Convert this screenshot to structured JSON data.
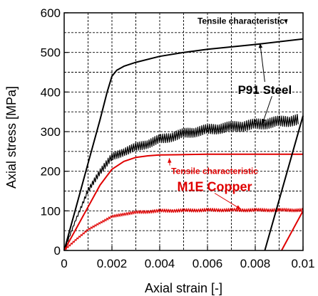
{
  "chart_data": {
    "type": "line",
    "title": "",
    "xlabel": "Axial strain [-]",
    "ylabel": "Axial stress [MPa]",
    "xlim": [
      0,
      0.01
    ],
    "ylim": [
      0,
      600
    ],
    "xticks": [
      0,
      0.002,
      0.004,
      0.006,
      0.008,
      0.01
    ],
    "xtick_labels": [
      "0",
      "0.002",
      "0.004",
      "0.006",
      "0.008",
      "0.01"
    ],
    "yticks": [
      0,
      100,
      200,
      300,
      400,
      500,
      600
    ],
    "ytick_labels": [
      "0",
      "100",
      "200",
      "300",
      "400",
      "500",
      "600"
    ],
    "grid": true,
    "colors": {
      "steel": "#000000",
      "copper": "#e00000"
    },
    "series": [
      {
        "key": "steel_tensile",
        "color": "#000000",
        "x": [
          0,
          0.0005,
          0.001,
          0.0015,
          0.0018,
          0.002,
          0.0022,
          0.0025,
          0.003,
          0.004,
          0.005,
          0.006,
          0.007,
          0.008,
          0.009,
          0.01
        ],
        "y": [
          0,
          110,
          220,
          330,
          400,
          440,
          455,
          465,
          475,
          490,
          500,
          508,
          514,
          520,
          527,
          534
        ]
      },
      {
        "key": "copper_tensile",
        "color": "#e00000",
        "x": [
          0,
          0.0005,
          0.001,
          0.0015,
          0.002,
          0.0025,
          0.003,
          0.0035,
          0.004,
          0.005,
          0.006,
          0.007,
          0.008,
          0.009,
          0.01
        ],
        "y": [
          0,
          55,
          110,
          165,
          205,
          225,
          235,
          239,
          241,
          242,
          243,
          243,
          243,
          243,
          243
        ]
      },
      {
        "key": "steel_cyclic",
        "color": "#000000",
        "noisy": true,
        "x": [
          0,
          0.0005,
          0.001,
          0.0015,
          0.002,
          0.0025,
          0.003,
          0.004,
          0.005,
          0.006,
          0.007,
          0.008,
          0.009,
          0.0098
        ],
        "y": [
          0,
          80,
          150,
          200,
          235,
          250,
          260,
          280,
          295,
          305,
          312,
          318,
          325,
          330
        ]
      },
      {
        "key": "copper_cyclic",
        "color": "#e00000",
        "noisy": true,
        "x": [
          0,
          0.0005,
          0.001,
          0.0015,
          0.002,
          0.0025,
          0.003,
          0.004,
          0.005,
          0.006,
          0.007,
          0.008,
          0.009,
          0.01
        ],
        "y": [
          0,
          28,
          52,
          70,
          85,
          92,
          96,
          100,
          101,
          102,
          102,
          102,
          102,
          102
        ]
      },
      {
        "key": "steel_unload",
        "color": "#000000",
        "x": [
          0.0084,
          0.01
        ],
        "y": [
          0,
          340
        ]
      },
      {
        "key": "copper_unload",
        "color": "#e00000",
        "x": [
          0.0091,
          0.01
        ],
        "y": [
          0,
          100
        ]
      }
    ],
    "annotations": [
      {
        "text": "Tensile characteristic",
        "color": "#000000",
        "bold": true,
        "size": 12,
        "x": 0.0074,
        "y": 572,
        "target": [
          0.0093,
          572
        ]
      },
      {
        "text": "P91 Steel",
        "color": "#000000",
        "bold": true,
        "size": 17,
        "x": 0.0084,
        "y": 395,
        "target": [
          0.0082,
          523
        ],
        "target2": [
          0.0083,
          320
        ]
      },
      {
        "text": "Tensile characteristic",
        "color": "#e00000",
        "bold": true,
        "size": 12,
        "x": 0.0063,
        "y": 193,
        "target": [
          0.0044,
          233
        ]
      },
      {
        "text": "M1E Copper",
        "color": "#e00000",
        "bold": true,
        "size": 18,
        "x": 0.0063,
        "y": 150,
        "target": [
          0.0074,
          104
        ]
      }
    ]
  }
}
